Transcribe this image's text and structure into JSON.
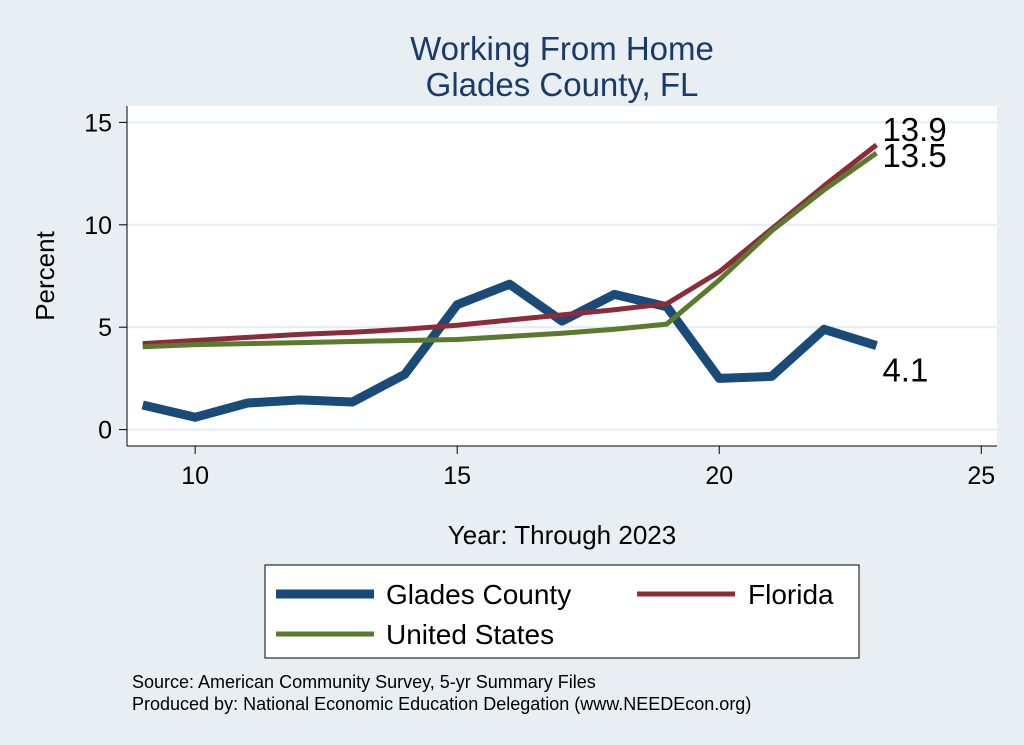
{
  "chart_data": {
    "type": "line",
    "title": [
      "Working From Home",
      "Glades County, FL"
    ],
    "xlabel": "Year: Through 2023",
    "ylabel": "Percent",
    "xlim": [
      8.7,
      25.3
    ],
    "ylim": [
      -0.8,
      15.8
    ],
    "x_ticks": [
      10,
      15,
      20,
      25
    ],
    "y_ticks": [
      0,
      5,
      10,
      15
    ],
    "grid": "horizontal",
    "legend_position": "bottom",
    "series": [
      {
        "name": "Glades County",
        "color": "#1a4a78",
        "width": "thick",
        "end_label": "4.1",
        "x": [
          9,
          10,
          11,
          12,
          13,
          14,
          15,
          16,
          17,
          18,
          19,
          20,
          21,
          22,
          23
        ],
        "y": [
          1.2,
          0.6,
          1.3,
          1.45,
          1.35,
          2.7,
          6.1,
          7.1,
          5.3,
          6.6,
          6.0,
          2.5,
          2.6,
          4.9,
          4.1
        ]
      },
      {
        "name": "Florida",
        "color": "#8b2c3a",
        "width": "thin",
        "end_label": "13.9",
        "x": [
          9,
          10,
          11,
          12,
          13,
          14,
          15,
          16,
          17,
          18,
          19,
          20,
          21,
          22,
          23
        ],
        "y": [
          4.2,
          4.35,
          4.5,
          4.65,
          4.75,
          4.9,
          5.1,
          5.35,
          5.6,
          5.85,
          6.15,
          7.7,
          9.8,
          11.9,
          13.9
        ]
      },
      {
        "name": "United States",
        "color": "#5a7a2e",
        "width": "thin",
        "end_label": "13.5",
        "x": [
          9,
          10,
          11,
          12,
          13,
          14,
          15,
          16,
          17,
          18,
          19,
          20,
          21,
          22,
          23
        ],
        "y": [
          4.05,
          4.15,
          4.2,
          4.25,
          4.3,
          4.35,
          4.4,
          4.55,
          4.7,
          4.9,
          5.15,
          7.3,
          9.7,
          11.7,
          13.5
        ]
      }
    ]
  },
  "source": {
    "line1": "Source: American Community Survey, 5-yr Summary Files",
    "line2": "Produced by: National Economic Education Delegation (www.NEEDEcon.org)"
  }
}
